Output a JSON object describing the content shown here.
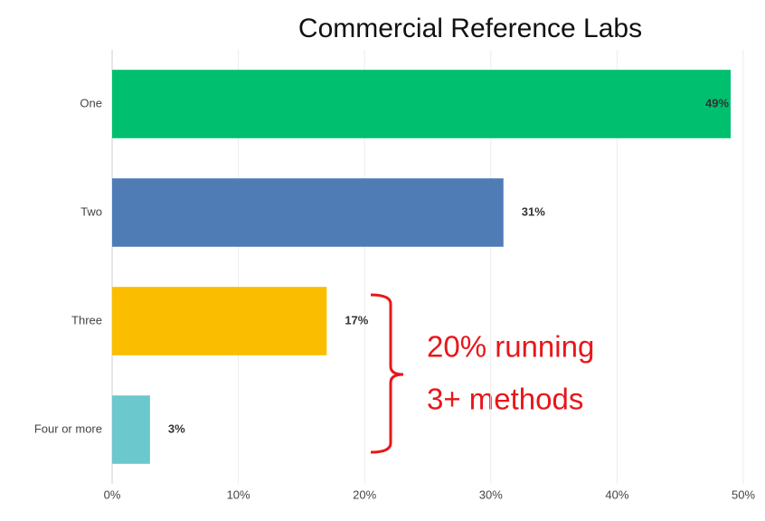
{
  "chart_data": {
    "type": "bar",
    "orientation": "horizontal",
    "title": "Commercial Reference Labs",
    "categories": [
      "One",
      "Two",
      "Three",
      "Four or more"
    ],
    "values": [
      49,
      31,
      17,
      3
    ],
    "value_labels": [
      "49%",
      "31%",
      "17%",
      "3%"
    ],
    "colors": [
      "#00bf6f",
      "#507cb6",
      "#fbbd00",
      "#6bc8cd"
    ],
    "xlim": [
      0,
      50
    ],
    "xticks": [
      {
        "value": 0,
        "label": "0%"
      },
      {
        "value": 10,
        "label": "10%"
      },
      {
        "value": 20,
        "label": "20%"
      },
      {
        "value": 30,
        "label": "30%"
      },
      {
        "value": 40,
        "label": "40%"
      },
      {
        "value": 50,
        "label": "50%"
      }
    ],
    "grid": true,
    "annotation": [
      "20% running",
      "3+ methods"
    ]
  }
}
